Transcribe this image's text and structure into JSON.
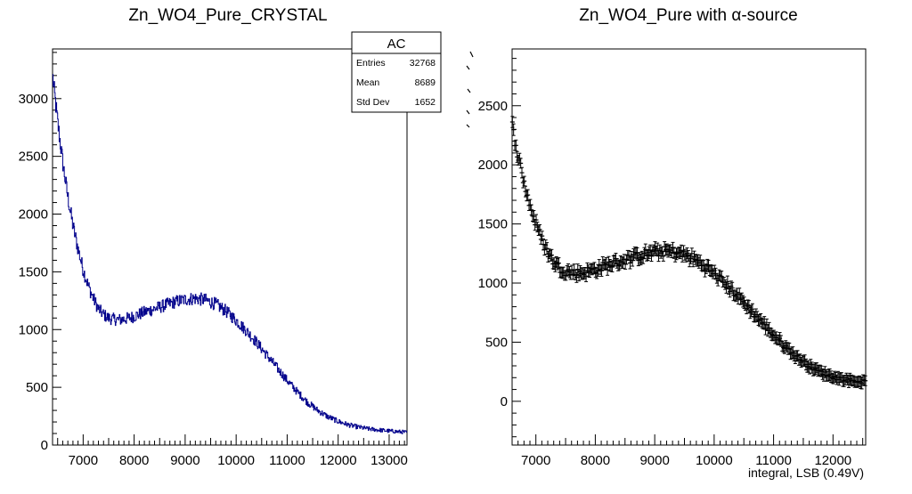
{
  "chart_data": [
    {
      "type": "line",
      "style": "histogram",
      "title": "Zn_WO4_Pure_CRYSTAL",
      "xlabel": "",
      "ylabel": "",
      "xlim": [
        6400,
        13350
      ],
      "ylim": [
        0,
        3430
      ],
      "xticks": [
        7000,
        8000,
        9000,
        10000,
        11000,
        12000,
        13000
      ],
      "yticks": [
        0,
        500,
        1000,
        1500,
        2000,
        2500,
        3000
      ],
      "line_color": "#00008b",
      "x": [
        6400,
        6500,
        6600,
        6700,
        6800,
        6900,
        7000,
        7100,
        7200,
        7300,
        7400,
        7500,
        7600,
        7700,
        7800,
        7900,
        8000,
        8200,
        8400,
        8600,
        8800,
        9000,
        9200,
        9400,
        9600,
        9800,
        10000,
        10200,
        10400,
        10600,
        10800,
        11000,
        11200,
        11400,
        11600,
        11800,
        12000,
        12200,
        12400,
        12600,
        12800,
        13000,
        13200,
        13350
      ],
      "values": [
        3200,
        2800,
        2450,
        2150,
        1900,
        1700,
        1520,
        1380,
        1270,
        1180,
        1130,
        1100,
        1090,
        1085,
        1090,
        1100,
        1115,
        1150,
        1180,
        1210,
        1240,
        1260,
        1270,
        1255,
        1220,
        1160,
        1080,
        990,
        890,
        780,
        670,
        560,
        460,
        370,
        300,
        245,
        205,
        175,
        155,
        140,
        130,
        122,
        115,
        110
      ],
      "stats_box": {
        "title": "AC",
        "rows": [
          {
            "label": "Entries",
            "value": "32768"
          },
          {
            "label": "Mean",
            "value": "8689"
          },
          {
            "label": "Std Dev",
            "value": "1652"
          }
        ]
      }
    },
    {
      "type": "scatter",
      "style": "points with error bars",
      "title": "Zn_WO4_Pure with α-source",
      "xlabel": "integral, LSB (0.49V)",
      "ylabel": "",
      "xlim": [
        6600,
        12550
      ],
      "ylim": [
        -370,
        2980
      ],
      "xticks": [
        7000,
        8000,
        9000,
        10000,
        11000,
        12000
      ],
      "yticks": [
        0,
        500,
        1000,
        1500,
        2000,
        2500
      ],
      "marker_color": "#000000",
      "error": 45,
      "x": [
        6600,
        6700,
        6800,
        6900,
        7000,
        7100,
        7200,
        7300,
        7400,
        7500,
        7600,
        7700,
        7800,
        7900,
        8000,
        8200,
        8400,
        8600,
        8800,
        9000,
        9200,
        9400,
        9600,
        9800,
        10000,
        10200,
        10400,
        10600,
        10800,
        11000,
        11200,
        11400,
        11600,
        11800,
        12000,
        12200,
        12400,
        12550
      ],
      "values": [
        2330,
        2080,
        1850,
        1660,
        1500,
        1370,
        1260,
        1180,
        1130,
        1100,
        1090,
        1085,
        1090,
        1100,
        1115,
        1150,
        1180,
        1210,
        1240,
        1260,
        1270,
        1255,
        1220,
        1160,
        1080,
        990,
        890,
        780,
        670,
        560,
        460,
        370,
        300,
        245,
        205,
        185,
        170,
        165
      ]
    }
  ]
}
